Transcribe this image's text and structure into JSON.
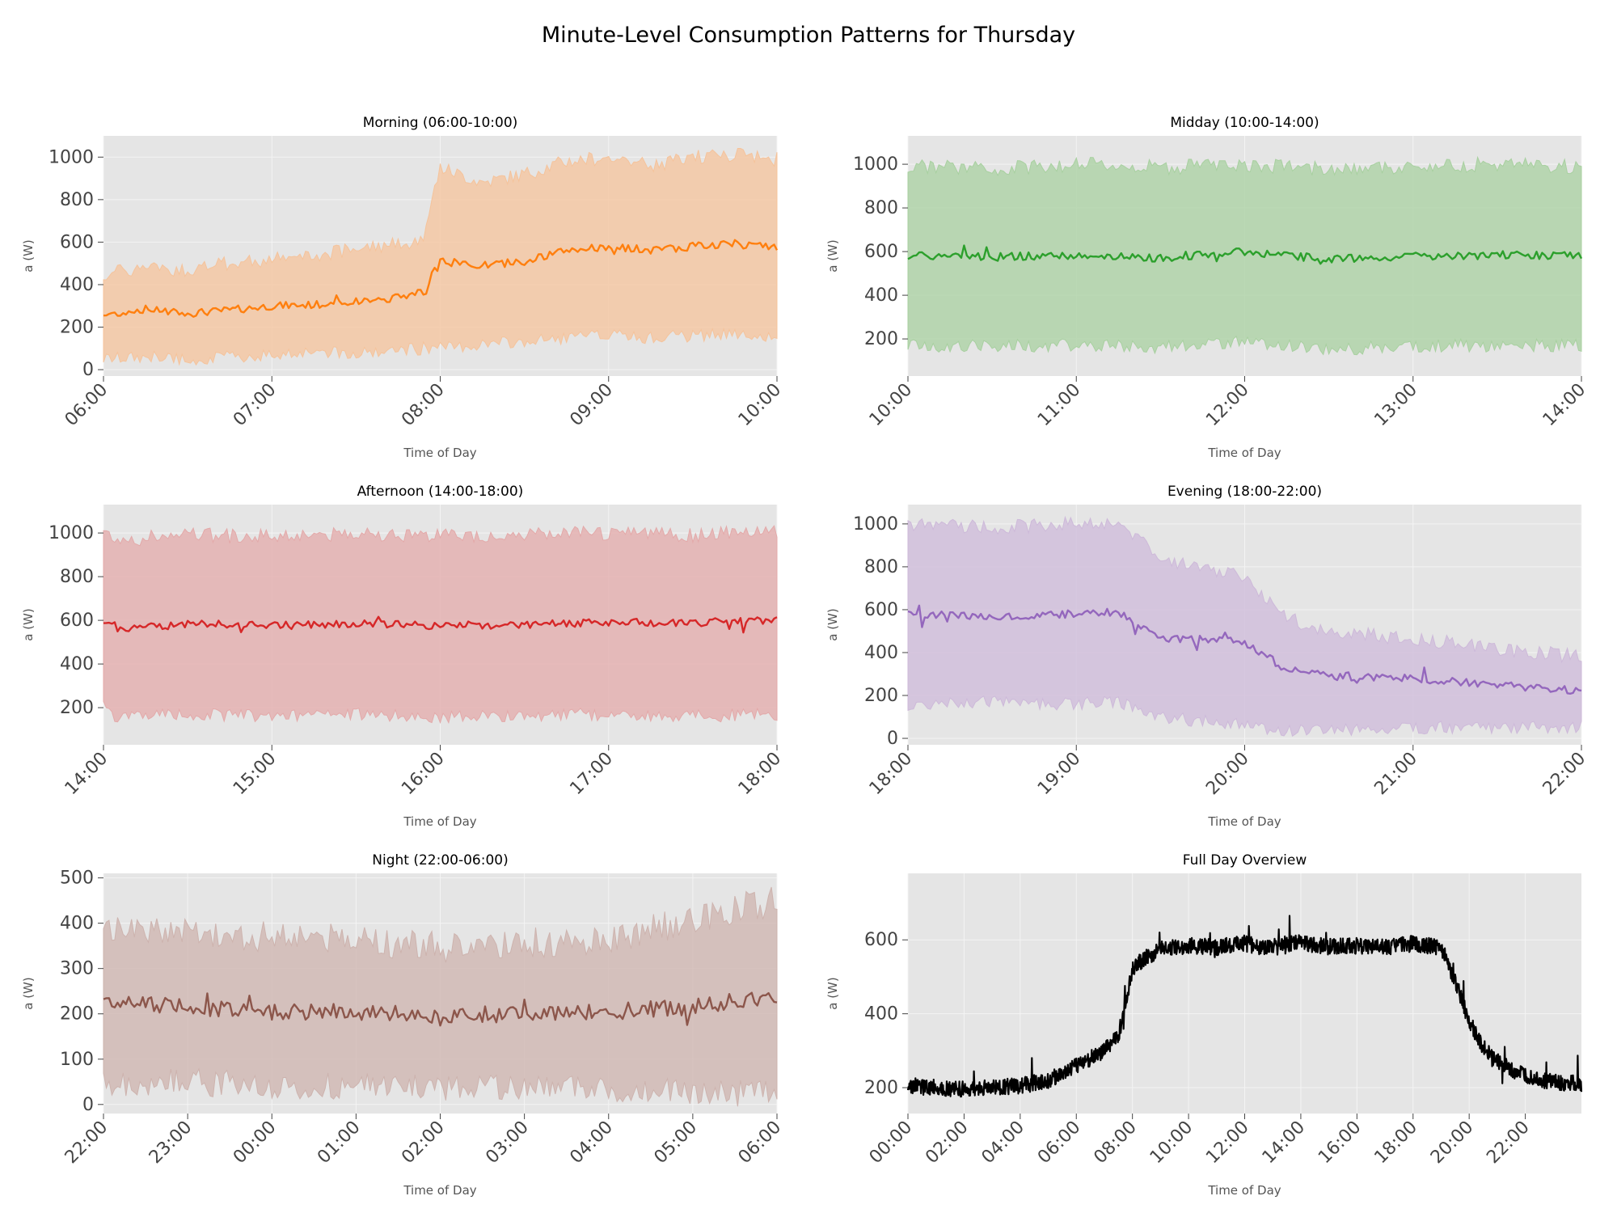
{
  "title": "Minute-Level Consumption Patterns for Thursday",
  "chart_data": [
    {
      "type": "area",
      "title": "Morning (06:00-10:00)",
      "xlabel": "Time of Day",
      "ylabel": "a (W)",
      "color": "#ff7f0e",
      "band_color": "#f5c39b",
      "xlim": [
        6,
        10
      ],
      "ylim": [
        -30,
        1100
      ],
      "xticks": [
        6,
        7,
        8,
        9,
        10
      ],
      "xtick_labels": [
        "06:00",
        "07:00",
        "08:00",
        "09:00",
        "10:00"
      ],
      "yticks": [
        0,
        200,
        400,
        600,
        800,
        1000
      ],
      "x": [
        6.0,
        6.25,
        6.5,
        6.75,
        7.0,
        7.25,
        7.5,
        7.75,
        7.9,
        8.0,
        8.25,
        8.5,
        8.75,
        9.0,
        9.25,
        9.5,
        9.75,
        10.0
      ],
      "mean": [
        255,
        285,
        265,
        280,
        300,
        305,
        320,
        340,
        370,
        510,
        490,
        510,
        560,
        580,
        560,
        580,
        590,
        575
      ],
      "upper": [
        450,
        480,
        470,
        500,
        520,
        530,
        570,
        590,
        620,
        950,
        880,
        920,
        980,
        1000,
        960,
        1000,
        1010,
        990
      ],
      "lower": [
        50,
        60,
        50,
        60,
        70,
        90,
        80,
        90,
        100,
        100,
        120,
        130,
        150,
        160,
        150,
        160,
        170,
        160
      ]
    },
    {
      "type": "area",
      "title": "Midday (10:00-14:00)",
      "xlabel": "Time of Day",
      "ylabel": "a (W)",
      "color": "#2ca02c",
      "band_color": "#a8d0a0",
      "xlim": [
        10,
        14
      ],
      "ylim": [
        30,
        1130
      ],
      "xticks": [
        10,
        11,
        12,
        13,
        14
      ],
      "xtick_labels": [
        "10:00",
        "11:00",
        "12:00",
        "13:00",
        "14:00"
      ],
      "yticks": [
        200,
        400,
        600,
        800,
        1000
      ],
      "x": [
        10.0,
        10.5,
        11.0,
        11.5,
        12.0,
        12.5,
        13.0,
        13.5,
        14.0
      ],
      "mean": [
        580,
        575,
        585,
        570,
        600,
        565,
        580,
        585,
        580
      ],
      "upper": [
        990,
        980,
        1000,
        985,
        1000,
        975,
        990,
        1000,
        990
      ],
      "lower": [
        170,
        170,
        170,
        160,
        190,
        150,
        170,
        170,
        170
      ]
    },
    {
      "type": "area",
      "title": "Afternoon (14:00-18:00)",
      "xlabel": "Time of Day",
      "ylabel": "a (W)",
      "color": "#d62728",
      "band_color": "#e3a9a9",
      "xlim": [
        14,
        18
      ],
      "ylim": [
        30,
        1130
      ],
      "xticks": [
        14,
        15,
        16,
        17,
        18
      ],
      "xtick_labels": [
        "14:00",
        "15:00",
        "16:00",
        "17:00",
        "18:00"
      ],
      "yticks": [
        200,
        400,
        600,
        800,
        1000
      ],
      "x": [
        14.0,
        14.1,
        14.5,
        15.0,
        15.5,
        16.0,
        16.5,
        17.0,
        17.5,
        18.0
      ],
      "mean": [
        600,
        560,
        585,
        575,
        585,
        575,
        580,
        590,
        590,
        600
      ],
      "upper": [
        1000,
        970,
        990,
        985,
        1000,
        990,
        990,
        1000,
        990,
        1010
      ],
      "lower": [
        200,
        150,
        170,
        160,
        170,
        160,
        165,
        170,
        160,
        170
      ]
    },
    {
      "type": "area",
      "title": "Evening (18:00-22:00)",
      "xlabel": "Time of Day",
      "ylabel": "a (W)",
      "color": "#9467bd",
      "band_color": "#cdb9d9",
      "xlim": [
        18,
        22
      ],
      "ylim": [
        -30,
        1090
      ],
      "xticks": [
        18,
        19,
        20,
        21,
        22
      ],
      "xtick_labels": [
        "18:00",
        "19:00",
        "20:00",
        "21:00",
        "22:00"
      ],
      "yticks": [
        0,
        200,
        400,
        600,
        800,
        1000
      ],
      "x": [
        18.0,
        18.5,
        19.0,
        19.25,
        19.5,
        19.75,
        20.0,
        20.25,
        20.5,
        21.0,
        21.5,
        22.0
      ],
      "mean": [
        580,
        570,
        580,
        590,
        470,
        460,
        450,
        320,
        290,
        280,
        250,
        220
      ],
      "upper": [
        1000,
        980,
        1000,
        1000,
        850,
        780,
        760,
        560,
        490,
        470,
        420,
        380
      ],
      "lower": [
        150,
        170,
        160,
        170,
        100,
        80,
        60,
        30,
        40,
        50,
        50,
        50
      ]
    },
    {
      "type": "area",
      "title": "Night (22:00-06:00)",
      "xlabel": "Time of Day",
      "ylabel": "a (W)",
      "color": "#8c564b",
      "band_color": "#cdb3ae",
      "xlim": [
        22,
        30
      ],
      "ylim": [
        -20,
        510
      ],
      "xticks": [
        22,
        23,
        24,
        25,
        26,
        27,
        28,
        29,
        30
      ],
      "xtick_labels": [
        "22:00",
        "23:00",
        "00:00",
        "01:00",
        "02:00",
        "03:00",
        "04:00",
        "05:00",
        "06:00"
      ],
      "yticks": [
        0,
        100,
        200,
        300,
        400,
        500
      ],
      "x": [
        22.0,
        23.0,
        24.0,
        25.0,
        26.0,
        27.0,
        28.0,
        29.0,
        29.5,
        30.0
      ],
      "mean": [
        225,
        215,
        205,
        205,
        195,
        200,
        205,
        215,
        230,
        240
      ],
      "upper": [
        395,
        380,
        370,
        365,
        345,
        355,
        365,
        410,
        430,
        450
      ],
      "lower": [
        45,
        50,
        40,
        40,
        35,
        35,
        35,
        30,
        25,
        25
      ]
    },
    {
      "type": "line",
      "title": "Full Day Overview",
      "xlabel": "Time of Day",
      "ylabel": "a (W)",
      "color": "#000000",
      "xlim": [
        0,
        24
      ],
      "ylim": [
        130,
        780
      ],
      "xticks": [
        0,
        2,
        4,
        6,
        8,
        10,
        12,
        14,
        16,
        18,
        20,
        22
      ],
      "xtick_labels": [
        "00:00",
        "02:00",
        "04:00",
        "06:00",
        "08:00",
        "10:00",
        "12:00",
        "14:00",
        "16:00",
        "18:00",
        "20:00",
        "22:00"
      ],
      "yticks": [
        200,
        400,
        600
      ],
      "x": [
        0,
        1,
        2,
        3,
        4,
        5,
        6,
        7,
        7.5,
        8,
        8.25,
        9,
        10,
        11,
        12,
        13,
        14,
        15,
        16,
        17,
        18,
        19,
        19.5,
        20,
        20.5,
        21,
        22,
        23,
        24
      ],
      "mean": [
        205,
        200,
        195,
        200,
        205,
        220,
        260,
        300,
        340,
        520,
        540,
        575,
        585,
        580,
        590,
        575,
        595,
        580,
        585,
        580,
        590,
        580,
        490,
        380,
        310,
        270,
        230,
        215,
        210
      ]
    }
  ]
}
